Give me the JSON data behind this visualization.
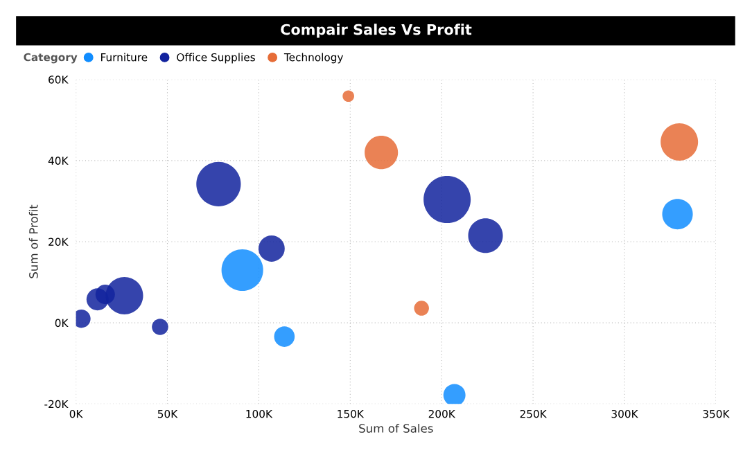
{
  "chart_data": {
    "type": "bubble",
    "title": "Compair Sales Vs Profit",
    "xlabel": "Sum of Sales",
    "ylabel": "Sum of Profit",
    "legend_title": "Category",
    "legend": "top left",
    "grid": true,
    "xlim": [
      0,
      350000
    ],
    "xticks": [
      {
        "value": 0,
        "label": "0K"
      },
      {
        "value": 50000,
        "label": "50K"
      },
      {
        "value": 100000,
        "label": "100K"
      },
      {
        "value": 150000,
        "label": "150K"
      },
      {
        "value": 200000,
        "label": "200K"
      },
      {
        "value": 250000,
        "label": "250K"
      },
      {
        "value": 300000,
        "label": "300K"
      },
      {
        "value": 350000,
        "label": "350K"
      }
    ],
    "ylim": [
      -20000,
      60000
    ],
    "yticks": [
      {
        "value": -20000,
        "label": "-20K"
      },
      {
        "value": 0,
        "label": "0K"
      },
      {
        "value": 20000,
        "label": "20K"
      },
      {
        "value": 40000,
        "label": "40K"
      },
      {
        "value": 60000,
        "label": "60K"
      }
    ],
    "series": [
      {
        "name": "Furniture",
        "color": "#118dff",
        "x": [
          91000,
          114000,
          207000,
          329000
        ],
        "values": [
          13000,
          -3400,
          -17800,
          26800
        ],
        "sizes": [
          0.78,
          0.19,
          0.22,
          0.42
        ]
      },
      {
        "name": "Office Supplies",
        "color": "#12239e",
        "x": [
          3000,
          11800,
          16000,
          26500,
          46000,
          78000,
          107000,
          203000,
          224000
        ],
        "values": [
          1000,
          5800,
          7000,
          6700,
          -1000,
          34200,
          18300,
          30400,
          21500
        ],
        "sizes": [
          0.15,
          0.22,
          0.17,
          0.63,
          0.12,
          0.89,
          0.31,
          1,
          0.54
        ]
      },
      {
        "name": "Technology",
        "color": "#e66c37",
        "x": [
          149000,
          167000,
          189000,
          330000
        ],
        "values": [
          55900,
          42000,
          3600,
          44600
        ],
        "sizes": [
          0.06,
          0.5,
          0.1,
          0.63
        ]
      }
    ]
  }
}
